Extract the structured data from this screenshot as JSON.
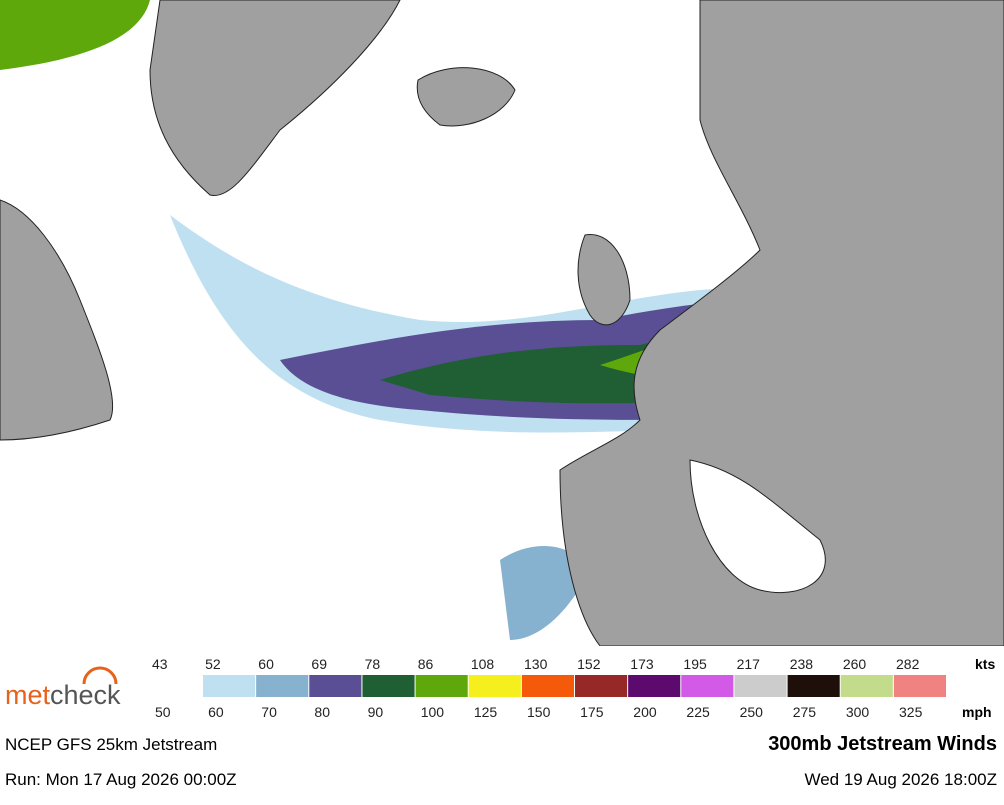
{
  "logo": [
    "met",
    "check"
  ],
  "legend": {
    "kts_unit": "kts",
    "mph_unit": "mph",
    "kts": [
      43,
      52,
      60,
      69,
      78,
      86,
      108,
      130,
      152,
      173,
      195,
      217,
      238,
      260,
      282
    ],
    "mph": [
      50,
      60,
      70,
      80,
      90,
      100,
      125,
      150,
      175,
      200,
      225,
      250,
      275,
      300,
      325
    ],
    "colors": [
      "#bfe0f0",
      "#86b2cf",
      "#5a4e94",
      "#1f5f33",
      "#5fa80c",
      "#f5ef1e",
      "#f55a0a",
      "#962828",
      "#5c0a6e",
      "#d25ae6",
      "#cccccc",
      "#1e0f0a",
      "#c3dc8c",
      "#f08282"
    ]
  },
  "footer": {
    "model": "NCEP GFS 25km Jetstream",
    "title": "300mb Jetstream Winds",
    "run": "Run: Mon 17 Aug 2026 00:00Z",
    "valid": "Wed 19 Aug 2026 18:00Z"
  }
}
